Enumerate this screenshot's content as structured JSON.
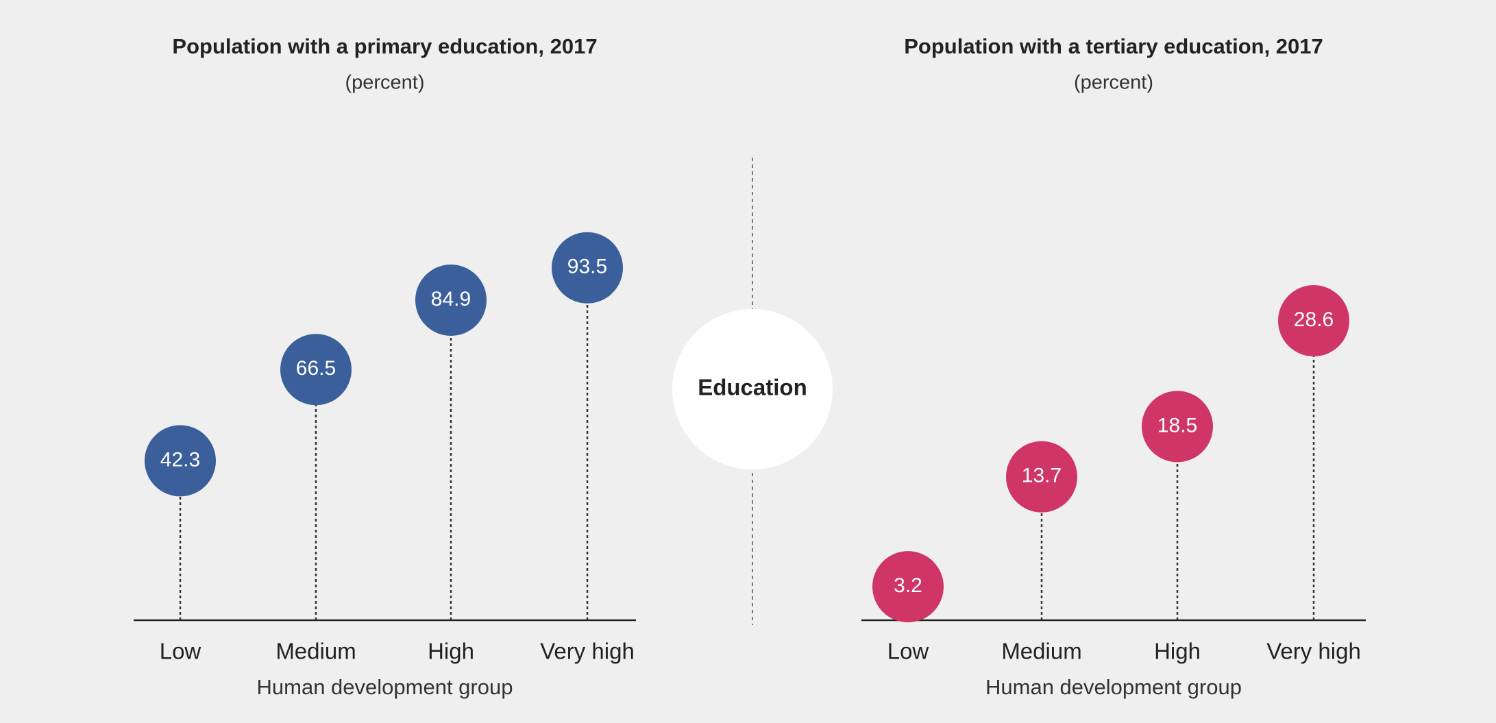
{
  "chart_data": [
    {
      "type": "lollipop",
      "title": "Population with a primary education, 2017",
      "subtitle": "(percent)",
      "x_label": "Human development group",
      "categories": [
        "Low",
        "Medium",
        "High",
        "Very high"
      ],
      "values": [
        42.3,
        66.5,
        84.9,
        93.5
      ],
      "color": "#3a5f9a",
      "ylim": [
        0,
        100
      ]
    },
    {
      "type": "lollipop",
      "title": "Population with a tertiary education, 2017",
      "subtitle": "(percent)",
      "x_label": "Human development group",
      "categories": [
        "Low",
        "Medium",
        "High",
        "Very high"
      ],
      "values": [
        3.2,
        13.7,
        18.5,
        28.6
      ],
      "color": "#cf3566",
      "ylim": [
        0,
        36
      ]
    }
  ],
  "center_label": "Education"
}
